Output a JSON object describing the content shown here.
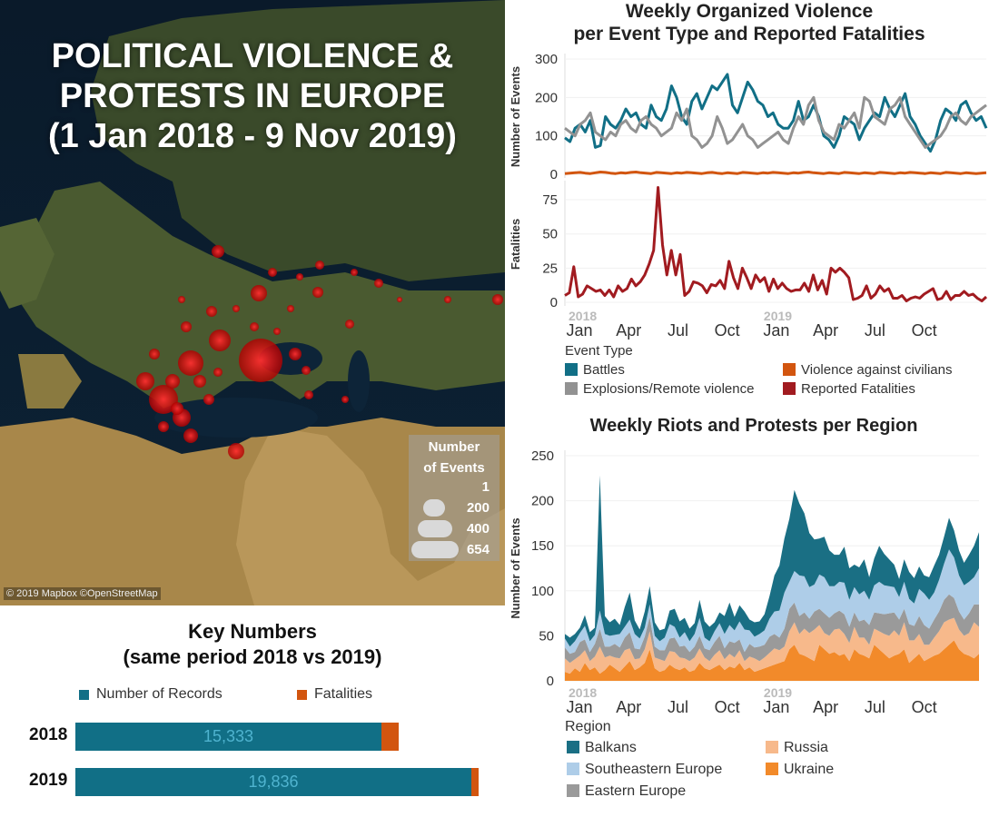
{
  "map": {
    "title_line1": "POLITICAL VIOLENCE &",
    "title_line2": "PROTESTS IN EUROPE",
    "title_line3": "(1 Jan 2018 - 9 Nov 2019)",
    "credit": "© 2019 Mapbox ©OpenStreetMap",
    "legend": {
      "title_line1": "Number",
      "title_line2": "of Events",
      "sizes": [
        "1",
        "200",
        "400",
        "654"
      ]
    }
  },
  "colors": {
    "battles": "#116f86",
    "explosions": "#929292",
    "violence_civilians": "#d2550f",
    "fatalities": "#a11b20",
    "balkans": "#1a6f84",
    "southeastern": "#aecde8",
    "eastern": "#9a9a9a",
    "russia": "#f7b98b",
    "ukraine": "#f28a2a"
  },
  "chart_data": [
    {
      "type": "line",
      "title": "Weekly Organized Violence per Event Type and Reported Fatalities",
      "title_line1": "Weekly Organized Violence",
      "title_line2": "per Event Type and Reported Fatalities",
      "x_ticks": [
        "Jan",
        "Apr",
        "Jul",
        "Oct",
        "Jan",
        "Apr",
        "Jul",
        "Oct"
      ],
      "year_labels": [
        "2018",
        "2019"
      ],
      "legend_title": "Event Type",
      "legend": [
        "Battles",
        "Explosions/Remote violence",
        "Violence against civilians",
        "Reported Fatalities"
      ],
      "panels": [
        {
          "ylabel": "Number of Events",
          "ylim": [
            0,
            300
          ],
          "yticks": [
            0,
            100,
            200,
            300
          ],
          "series": [
            {
              "name": "Battles",
              "values": [
                95,
                85,
                120,
                130,
                110,
                140,
                70,
                75,
                150,
                130,
                120,
                140,
                170,
                150,
                160,
                130,
                120,
                180,
                150,
                140,
                170,
                230,
                200,
                150,
                130,
                190,
                210,
                170,
                200,
                230,
                220,
                240,
                260,
                180,
                160,
                200,
                240,
                220,
                190,
                180,
                150,
                160,
                130,
                120,
                120,
                140,
                190,
                140,
                150,
                180,
                150,
                100,
                90,
                70,
                100,
                150,
                140,
                130,
                90,
                120,
                140,
                160,
                150,
                200,
                170,
                150,
                180,
                210,
                150,
                130,
                100,
                80,
                60,
                90,
                140,
                170,
                160,
                140,
                180,
                190,
                160,
                140,
                150,
                120
              ]
            },
            {
              "name": "Explosions/Remote violence",
              "values": [
                120,
                110,
                100,
                130,
                140,
                160,
                110,
                100,
                90,
                110,
                100,
                130,
                140,
                120,
                110,
                140,
                150,
                130,
                120,
                100,
                110,
                120,
                160,
                140,
                170,
                100,
                90,
                70,
                80,
                100,
                150,
                120,
                80,
                90,
                110,
                130,
                100,
                90,
                70,
                80,
                90,
                100,
                110,
                90,
                80,
                120,
                150,
                130,
                180,
                200,
                140,
                110,
                100,
                90,
                130,
                120,
                140,
                160,
                120,
                200,
                190,
                150,
                140,
                130,
                170,
                180,
                200,
                150,
                130,
                110,
                90,
                70,
                80,
                90,
                100,
                120,
                150,
                160,
                140,
                130,
                150,
                160,
                170,
                180
              ]
            },
            {
              "name": "Violence against civilians",
              "values": [
                2,
                3,
                4,
                5,
                3,
                2,
                4,
                6,
                5,
                3,
                2,
                4,
                3,
                5,
                6,
                4,
                3,
                2,
                5,
                4,
                3,
                2,
                4,
                3,
                5,
                4,
                3,
                2,
                4,
                5,
                3,
                2,
                4,
                3,
                2,
                5,
                4,
                3,
                2,
                4,
                3,
                5,
                4,
                3,
                2,
                4,
                3,
                5,
                6,
                4,
                3,
                2,
                4,
                3,
                2,
                5,
                4,
                3,
                2,
                4,
                3,
                2,
                5,
                4,
                3,
                2,
                4,
                3,
                5,
                4,
                3,
                2,
                4,
                3,
                2,
                5,
                4,
                3,
                2,
                4,
                3,
                2,
                3,
                4
              ]
            }
          ]
        },
        {
          "ylabel": "Fatalities",
          "ylim": [
            0,
            85
          ],
          "yticks": [
            0,
            25,
            50,
            75
          ],
          "series": [
            {
              "name": "Reported Fatalities",
              "values": [
                5,
                7,
                26,
                4,
                6,
                12,
                10,
                8,
                9,
                5,
                9,
                4,
                12,
                8,
                10,
                17,
                12,
                15,
                20,
                28,
                38,
                84,
                42,
                20,
                38,
                20,
                35,
                5,
                8,
                15,
                14,
                12,
                7,
                13,
                12,
                16,
                10,
                30,
                18,
                10,
                25,
                18,
                10,
                20,
                15,
                18,
                8,
                17,
                10,
                14,
                10,
                8,
                9,
                9,
                14,
                8,
                20,
                9,
                16,
                6,
                25,
                22,
                25,
                22,
                18,
                2,
                3,
                5,
                12,
                3,
                6,
                12,
                8,
                10,
                3,
                3,
                5,
                1,
                3,
                4,
                3,
                6,
                8,
                10,
                2,
                3,
                8,
                2,
                5,
                5,
                8,
                5,
                6,
                3,
                1,
                4
              ]
            }
          ]
        }
      ]
    },
    {
      "type": "area",
      "title": "Weekly Riots and Protests per Region",
      "ylabel": "Number of Events",
      "ylim": [
        0,
        250
      ],
      "yticks": [
        0,
        50,
        100,
        150,
        200,
        250
      ],
      "x_ticks": [
        "Jan",
        "Apr",
        "Jul",
        "Oct",
        "Jan",
        "Apr",
        "Jul",
        "Oct"
      ],
      "year_labels": [
        "2018",
        "2019"
      ],
      "legend_title": "Region",
      "legend": [
        "Balkans",
        "Southeastern Europe",
        "Eastern Europe",
        "Russia",
        "Ukraine"
      ],
      "series": [
        {
          "name": "Ukraine",
          "values": [
            10,
            8,
            14,
            10,
            20,
            12,
            15,
            8,
            12,
            18,
            14,
            10,
            16,
            22,
            12,
            15,
            20,
            35,
            14,
            10,
            12,
            18,
            14,
            12,
            15,
            10,
            12,
            20,
            14,
            12,
            15,
            18,
            12,
            16,
            14,
            20,
            12,
            15,
            10,
            12,
            14,
            16,
            18,
            20,
            22,
            35,
            40,
            30,
            28,
            25,
            22,
            40,
            35,
            30,
            32,
            28,
            30,
            22,
            35,
            30,
            28,
            25,
            40,
            35,
            30,
            25,
            28,
            30,
            35,
            20,
            25,
            30,
            22,
            25,
            28,
            30,
            35,
            40,
            45,
            35,
            30,
            28,
            25,
            30
          ]
        },
        {
          "name": "Russia",
          "values": [
            15,
            12,
            10,
            18,
            14,
            10,
            12,
            30,
            14,
            10,
            12,
            15,
            18,
            14,
            12,
            10,
            15,
            20,
            12,
            14,
            10,
            15,
            18,
            14,
            10,
            12,
            14,
            16,
            12,
            10,
            14,
            16,
            12,
            14,
            12,
            14,
            10,
            12,
            15,
            10,
            12,
            15,
            18,
            14,
            16,
            20,
            25,
            22,
            30,
            28,
            35,
            22,
            18,
            20,
            25,
            30,
            22,
            20,
            25,
            18,
            20,
            15,
            18,
            20,
            22,
            25,
            28,
            20,
            30,
            25,
            20,
            22,
            18,
            15,
            20,
            25,
            30,
            28,
            25,
            22,
            20,
            25,
            40,
            30
          ]
        },
        {
          "name": "Eastern Europe",
          "values": [
            12,
            10,
            8,
            15,
            12,
            10,
            14,
            20,
            12,
            10,
            15,
            12,
            14,
            18,
            12,
            10,
            14,
            16,
            12,
            10,
            12,
            14,
            16,
            12,
            14,
            10,
            12,
            14,
            10,
            12,
            14,
            16,
            12,
            14,
            16,
            12,
            10,
            14,
            12,
            16,
            14,
            18,
            16,
            14,
            20,
            25,
            22,
            20,
            18,
            16,
            20,
            18,
            22,
            20,
            18,
            20,
            22,
            18,
            16,
            18,
            20,
            22,
            18,
            20,
            22,
            25,
            20,
            18,
            15,
            18,
            16,
            20,
            22,
            18,
            20,
            22,
            25,
            28,
            22,
            20,
            18,
            22,
            20,
            25
          ]
        },
        {
          "name": "Southeastern Europe",
          "values": [
            10,
            8,
            12,
            10,
            15,
            12,
            10,
            20,
            14,
            12,
            10,
            15,
            12,
            14,
            16,
            12,
            10,
            14,
            12,
            10,
            14,
            16,
            12,
            10,
            15,
            12,
            14,
            20,
            12,
            10,
            12,
            14,
            16,
            18,
            14,
            20,
            25,
            15,
            12,
            14,
            16,
            20,
            25,
            30,
            40,
            30,
            35,
            45,
            40,
            35,
            30,
            38,
            40,
            35,
            30,
            32,
            35,
            30,
            28,
            30,
            32,
            28,
            30,
            35,
            32,
            30,
            28,
            25,
            30,
            28,
            25,
            30,
            35,
            32,
            30,
            35,
            40,
            50,
            45,
            40,
            38,
            35,
            30,
            40
          ]
        },
        {
          "name": "Balkans",
          "values": [
            5,
            10,
            8,
            6,
            12,
            10,
            8,
            150,
            20,
            15,
            18,
            10,
            22,
            30,
            15,
            10,
            18,
            20,
            15,
            12,
            10,
            15,
            20,
            18,
            16,
            14,
            12,
            20,
            18,
            16,
            10,
            12,
            20,
            25,
            15,
            18,
            20,
            12,
            16,
            14,
            18,
            25,
            40,
            50,
            60,
            70,
            90,
            80,
            70,
            60,
            50,
            40,
            45,
            40,
            35,
            30,
            40,
            35,
            25,
            30,
            35,
            25,
            30,
            40,
            35,
            30,
            25,
            20,
            25,
            30,
            28,
            25,
            20,
            25,
            30,
            28,
            30,
            35,
            30,
            28,
            25,
            30,
            35,
            40
          ]
        }
      ]
    },
    {
      "type": "bar",
      "title": "Key Numbers (same period 2018 vs 2019)",
      "title_line1": "Key Numbers",
      "title_line2": "(same period 2018 vs 2019)",
      "categories": [
        "2018",
        "2019"
      ],
      "series": [
        {
          "name": "Number of Records",
          "values": [
            15333,
            19836
          ],
          "labels": [
            "15,333",
            "19,836"
          ]
        },
        {
          "name": "Fatalities",
          "values": [
            860,
            340
          ]
        }
      ]
    }
  ]
}
